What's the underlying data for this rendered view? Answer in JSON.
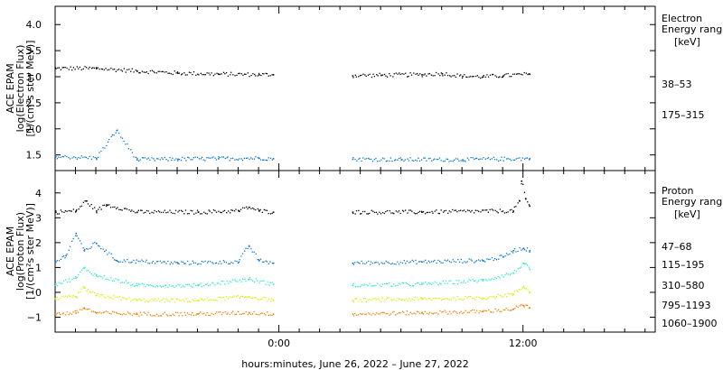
{
  "chart_data": {
    "type": "scatter",
    "xlabel": "hours:minutes, June 26, 2022 – June 27, 2022",
    "x_ticks": [
      "0:00",
      "12:00"
    ],
    "x_tick_hours": [
      0,
      12
    ],
    "xlim_hours": [
      -11,
      18.5
    ],
    "gaps_hours": [
      [
        -0.3,
        3.6
      ],
      [
        12.3,
        18.5
      ]
    ],
    "panels": [
      {
        "name": "electron",
        "ylabel": [
          "ACE EPAM",
          "log(Electron Flux)",
          "[1/(cm²s ster MeV)]"
        ],
        "ylim": [
          1.2,
          4.35
        ],
        "y_ticks": [
          1.5,
          2.0,
          2.5,
          3.0,
          3.5,
          4.0
        ],
        "y_tick_labels": [
          "1.5",
          "2.0",
          "2.5",
          "3.0",
          "3.5",
          "4.0"
        ],
        "legend_title": [
          "Electron",
          "Energy ranges",
          "[keV]"
        ],
        "series": [
          {
            "name": "38–53",
            "color": "#000000",
            "points": [
              [
                -11,
                3.17
              ],
              [
                -9,
                3.17
              ],
              [
                -7,
                3.12
              ],
              [
                -5,
                3.08
              ],
              [
                -3,
                3.06
              ],
              [
                -1,
                3.05
              ],
              [
                -0.3,
                3.05
              ],
              [
                3.6,
                3.03
              ],
              [
                5,
                3.04
              ],
              [
                7,
                3.05
              ],
              [
                8,
                3.07
              ],
              [
                9,
                3.02
              ],
              [
                10,
                3.01
              ],
              [
                11,
                3.03
              ],
              [
                12.3,
                3.06
              ]
            ]
          },
          {
            "name": "175–315",
            "color": "#0a77c4",
            "points": [
              [
                -11,
                1.48
              ],
              [
                -9,
                1.45
              ],
              [
                -8,
                1.98
              ],
              [
                -7,
                1.42
              ],
              [
                -5,
                1.43
              ],
              [
                -3,
                1.44
              ],
              [
                -1,
                1.45
              ],
              [
                -0.3,
                1.44
              ],
              [
                3.6,
                1.43
              ],
              [
                6,
                1.42
              ],
              [
                9,
                1.42
              ],
              [
                12.3,
                1.44
              ]
            ]
          }
        ]
      },
      {
        "name": "proton",
        "ylabel": [
          "ACE EPAM",
          "log(Proton Flux)",
          "[1/(cm²s ster MeV)]"
        ],
        "ylim": [
          -1.6,
          4.9
        ],
        "y_ticks": [
          -1,
          0,
          1,
          2,
          3,
          4
        ],
        "y_tick_labels": [
          "−1",
          "0",
          "1",
          "2",
          "3",
          "4"
        ],
        "legend_title": [
          "Proton",
          "Energy ranges",
          "[keV]"
        ],
        "series": [
          {
            "name": "47–68",
            "color": "#000000",
            "points": [
              [
                -11,
                3.25
              ],
              [
                -10,
                3.3
              ],
              [
                -9.5,
                3.7
              ],
              [
                -9,
                3.3
              ],
              [
                -8.5,
                3.55
              ],
              [
                -7,
                3.25
              ],
              [
                -4,
                3.25
              ],
              [
                -2,
                3.3
              ],
              [
                -1.5,
                3.45
              ],
              [
                -1,
                3.3
              ],
              [
                -0.3,
                3.25
              ],
              [
                3.6,
                3.25
              ],
              [
                7,
                3.25
              ],
              [
                11.5,
                3.3
              ],
              [
                11.8,
                3.7
              ],
              [
                11.9,
                4.5
              ],
              [
                12.1,
                3.8
              ],
              [
                12.3,
                3.5
              ]
            ]
          },
          {
            "name": "115–195",
            "color": "#0a77c4",
            "points": [
              [
                -11,
                1.25
              ],
              [
                -10.5,
                1.5
              ],
              [
                -10,
                2.4
              ],
              [
                -9.6,
                1.7
              ],
              [
                -9,
                2.0
              ],
              [
                -8,
                1.3
              ],
              [
                -5,
                1.2
              ],
              [
                -2,
                1.25
              ],
              [
                -1.5,
                1.9
              ],
              [
                -1,
                1.3
              ],
              [
                -0.3,
                1.2
              ],
              [
                3.6,
                1.2
              ],
              [
                7,
                1.25
              ],
              [
                10,
                1.3
              ],
              [
                11,
                1.45
              ],
              [
                11.5,
                1.7
              ],
              [
                12,
                1.8
              ],
              [
                12.3,
                1.7
              ]
            ]
          },
          {
            "name": "310–580",
            "color": "#2ee6d6",
            "points": [
              [
                -11,
                0.35
              ],
              [
                -10,
                0.6
              ],
              [
                -9.6,
                1.0
              ],
              [
                -9,
                0.7
              ],
              [
                -7,
                0.3
              ],
              [
                -4,
                0.3
              ],
              [
                -1.5,
                0.55
              ],
              [
                -0.3,
                0.35
              ],
              [
                3.6,
                0.3
              ],
              [
                7,
                0.35
              ],
              [
                10,
                0.5
              ],
              [
                11.5,
                0.8
              ],
              [
                12,
                1.2
              ],
              [
                12.3,
                0.95
              ]
            ]
          },
          {
            "name": "795–1193",
            "color": "#d8f000",
            "points": [
              [
                -11,
                -0.25
              ],
              [
                -10,
                -0.15
              ],
              [
                -9.6,
                0.2
              ],
              [
                -9,
                -0.1
              ],
              [
                -7,
                -0.3
              ],
              [
                -4,
                -0.3
              ],
              [
                -1.5,
                -0.15
              ],
              [
                -0.3,
                -0.3
              ],
              [
                3.6,
                -0.3
              ],
              [
                7,
                -0.25
              ],
              [
                10,
                -0.2
              ],
              [
                11.5,
                -0.05
              ],
              [
                12,
                0.25
              ],
              [
                12.3,
                0.05
              ]
            ]
          },
          {
            "name": "1060–1900",
            "color": "#f08000",
            "points": [
              [
                -11,
                -0.85
              ],
              [
                -10,
                -0.8
              ],
              [
                -9.6,
                -0.6
              ],
              [
                -9,
                -0.8
              ],
              [
                -7,
                -0.85
              ],
              [
                -4,
                -0.85
              ],
              [
                -1.5,
                -0.8
              ],
              [
                -0.3,
                -0.85
              ],
              [
                3.6,
                -0.85
              ],
              [
                7,
                -0.8
              ],
              [
                10,
                -0.75
              ],
              [
                11.5,
                -0.65
              ],
              [
                12,
                -0.5
              ],
              [
                12.3,
                -0.6
              ]
            ]
          }
        ]
      }
    ]
  }
}
